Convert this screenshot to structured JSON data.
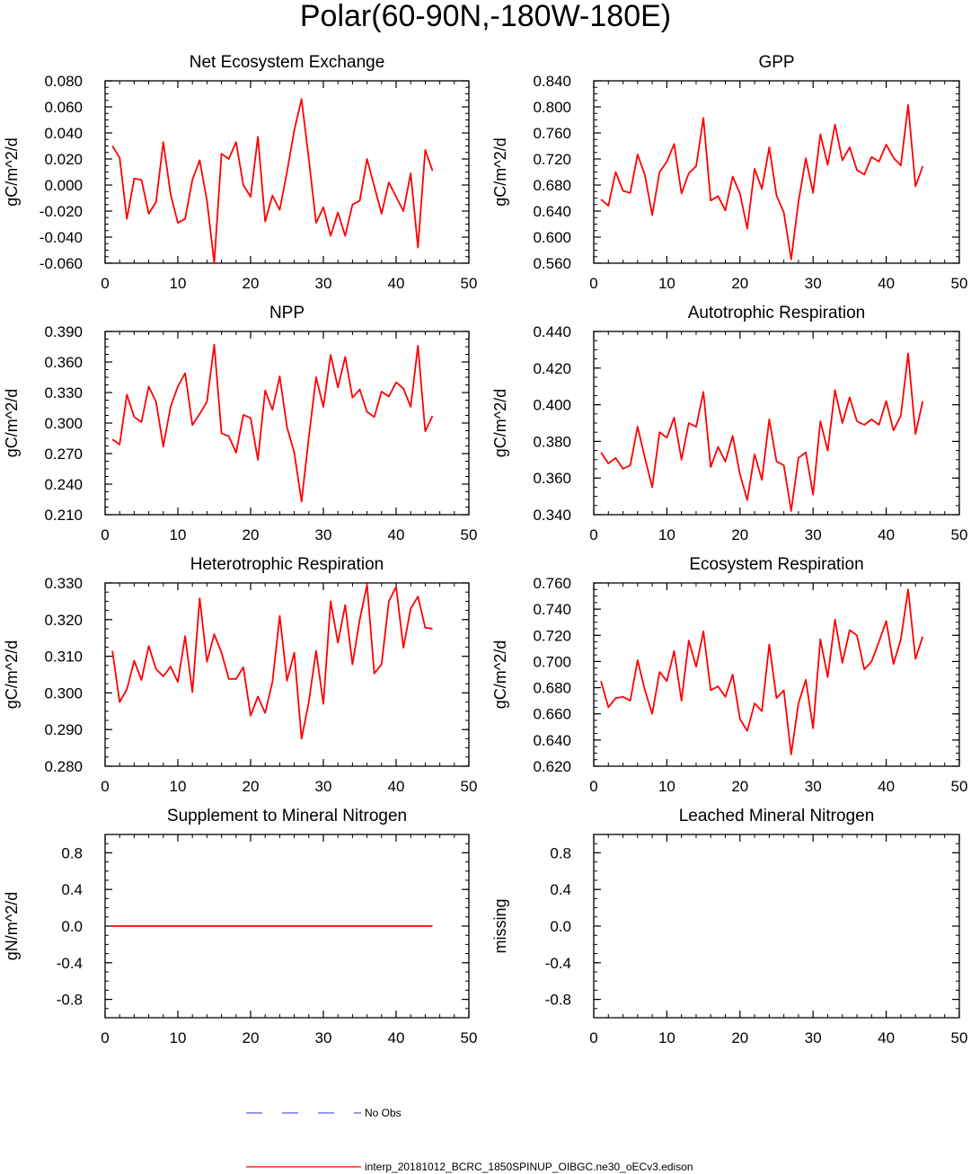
{
  "page": {
    "title": "Polar(60-90N,-180W-180E)"
  },
  "legend": {
    "obs_label": "No Obs",
    "model_label": "interp_20181012_BCRC_1850SPINUP_OIBGC.ne30_oECv3.edison",
    "obs_color": "#5b5bf0",
    "model_color": "#ff0000"
  },
  "chart_data": [
    {
      "type": "line",
      "title": "Net Ecosystem Exchange",
      "ylabel": "gC/m^2/d",
      "xlim": [
        0,
        50
      ],
      "ylim": [
        -0.06,
        0.08
      ],
      "xticks": [
        0,
        10,
        20,
        30,
        40,
        50
      ],
      "yticks": [
        "-0.060",
        "-0.040",
        "-0.020",
        "0.000",
        "0.020",
        "0.040",
        "0.060",
        "0.080"
      ],
      "ytick_values": [
        -0.06,
        -0.04,
        -0.02,
        0.0,
        0.02,
        0.04,
        0.06,
        0.08
      ],
      "series": [
        {
          "color": "#ff0000",
          "x": [
            1,
            2,
            3,
            4,
            5,
            6,
            7,
            8,
            9,
            10,
            11,
            12,
            13,
            14,
            15,
            16,
            17,
            18,
            19,
            20,
            21,
            22,
            23,
            24,
            25,
            26,
            27,
            28,
            29,
            30,
            31,
            32,
            33,
            34,
            35,
            36,
            37,
            38,
            39,
            40,
            41,
            42,
            43,
            44,
            45
          ],
          "values": [
            0.03,
            0.021,
            -0.026,
            0.005,
            0.004,
            -0.022,
            -0.013,
            0.033,
            -0.007,
            -0.029,
            -0.026,
            0.004,
            0.019,
            -0.012,
            -0.06,
            0.024,
            0.02,
            0.033,
            0.0,
            -0.009,
            0.037,
            -0.028,
            -0.008,
            -0.019,
            0.01,
            0.042,
            0.066,
            0.02,
            -0.029,
            -0.017,
            -0.039,
            -0.021,
            -0.039,
            -0.015,
            -0.012,
            0.02,
            -0.001,
            -0.022,
            0.002,
            -0.009,
            -0.02,
            0.009,
            -0.048,
            0.027,
            0.011
          ]
        }
      ]
    },
    {
      "type": "line",
      "title": "GPP",
      "ylabel": "gC/m^2/d",
      "xlim": [
        0,
        50
      ],
      "ylim": [
        0.56,
        0.84
      ],
      "xticks": [
        0,
        10,
        20,
        30,
        40,
        50
      ],
      "yticks": [
        "0.560",
        "0.600",
        "0.640",
        "0.680",
        "0.720",
        "0.760",
        "0.800",
        "0.840"
      ],
      "ytick_values": [
        0.56,
        0.6,
        0.64,
        0.68,
        0.72,
        0.76,
        0.8,
        0.84
      ],
      "series": [
        {
          "color": "#ff0000",
          "x": [
            1,
            2,
            3,
            4,
            5,
            6,
            7,
            8,
            9,
            10,
            11,
            12,
            13,
            14,
            15,
            16,
            17,
            18,
            19,
            20,
            21,
            22,
            23,
            24,
            25,
            26,
            27,
            28,
            29,
            30,
            31,
            32,
            33,
            34,
            35,
            36,
            37,
            38,
            39,
            40,
            41,
            42,
            43,
            44,
            45
          ],
          "values": [
            0.658,
            0.648,
            0.7,
            0.671,
            0.668,
            0.727,
            0.695,
            0.634,
            0.7,
            0.716,
            0.743,
            0.667,
            0.698,
            0.709,
            0.783,
            0.656,
            0.663,
            0.641,
            0.693,
            0.667,
            0.613,
            0.705,
            0.674,
            0.738,
            0.664,
            0.638,
            0.566,
            0.654,
            0.721,
            0.668,
            0.758,
            0.711,
            0.773,
            0.718,
            0.738,
            0.703,
            0.696,
            0.723,
            0.716,
            0.742,
            0.722,
            0.71,
            0.803,
            0.678,
            0.709
          ]
        }
      ]
    },
    {
      "type": "line",
      "title": "NPP",
      "ylabel": "gC/m^2/d",
      "xlim": [
        0,
        50
      ],
      "ylim": [
        0.21,
        0.39
      ],
      "xticks": [
        0,
        10,
        20,
        30,
        40,
        50
      ],
      "yticks": [
        "0.210",
        "0.240",
        "0.270",
        "0.300",
        "0.330",
        "0.360",
        "0.390"
      ],
      "ytick_values": [
        0.21,
        0.24,
        0.27,
        0.3,
        0.33,
        0.36,
        0.39
      ],
      "series": [
        {
          "color": "#ff0000",
          "x": [
            1,
            2,
            3,
            4,
            5,
            6,
            7,
            8,
            9,
            10,
            11,
            12,
            13,
            14,
            15,
            16,
            17,
            18,
            19,
            20,
            21,
            22,
            23,
            24,
            25,
            26,
            27,
            28,
            29,
            30,
            31,
            32,
            33,
            34,
            35,
            36,
            37,
            38,
            39,
            40,
            41,
            42,
            43,
            44,
            45
          ],
          "values": [
            0.284,
            0.279,
            0.328,
            0.306,
            0.301,
            0.336,
            0.321,
            0.277,
            0.316,
            0.336,
            0.349,
            0.298,
            0.309,
            0.321,
            0.377,
            0.29,
            0.287,
            0.271,
            0.308,
            0.305,
            0.264,
            0.332,
            0.313,
            0.346,
            0.296,
            0.271,
            0.223,
            0.286,
            0.345,
            0.316,
            0.367,
            0.335,
            0.365,
            0.325,
            0.333,
            0.311,
            0.306,
            0.331,
            0.326,
            0.34,
            0.334,
            0.316,
            0.376,
            0.292,
            0.307
          ]
        }
      ]
    },
    {
      "type": "line",
      "title": "Autotrophic Respiration",
      "ylabel": "gC/m^2/d",
      "xlim": [
        0,
        50
      ],
      "ylim": [
        0.34,
        0.44
      ],
      "xticks": [
        0,
        10,
        20,
        30,
        40,
        50
      ],
      "yticks": [
        "0.340",
        "0.360",
        "0.380",
        "0.400",
        "0.420",
        "0.440"
      ],
      "ytick_values": [
        0.34,
        0.36,
        0.38,
        0.4,
        0.42,
        0.44
      ],
      "series": [
        {
          "color": "#ff0000",
          "x": [
            1,
            2,
            3,
            4,
            5,
            6,
            7,
            8,
            9,
            10,
            11,
            12,
            13,
            14,
            15,
            16,
            17,
            18,
            19,
            20,
            21,
            22,
            23,
            24,
            25,
            26,
            27,
            28,
            29,
            30,
            31,
            32,
            33,
            34,
            35,
            36,
            37,
            38,
            39,
            40,
            41,
            42,
            43,
            44,
            45
          ],
          "values": [
            0.374,
            0.368,
            0.371,
            0.365,
            0.367,
            0.388,
            0.371,
            0.355,
            0.385,
            0.382,
            0.393,
            0.37,
            0.39,
            0.388,
            0.407,
            0.366,
            0.377,
            0.369,
            0.383,
            0.362,
            0.348,
            0.373,
            0.359,
            0.392,
            0.369,
            0.367,
            0.342,
            0.371,
            0.374,
            0.351,
            0.391,
            0.375,
            0.408,
            0.39,
            0.404,
            0.391,
            0.389,
            0.392,
            0.389,
            0.402,
            0.386,
            0.394,
            0.428,
            0.384,
            0.402
          ]
        }
      ]
    },
    {
      "type": "line",
      "title": "Heterotrophic Respiration",
      "ylabel": "gC/m^2/d",
      "xlim": [
        0,
        50
      ],
      "ylim": [
        0.28,
        0.33
      ],
      "xticks": [
        0,
        10,
        20,
        30,
        40,
        50
      ],
      "yticks": [
        "0.280",
        "0.290",
        "0.300",
        "0.310",
        "0.320",
        "0.330"
      ],
      "ytick_values": [
        0.28,
        0.29,
        0.3,
        0.31,
        0.32,
        0.33
      ],
      "series": [
        {
          "color": "#ff0000",
          "x": [
            1,
            2,
            3,
            4,
            5,
            6,
            7,
            8,
            9,
            10,
            11,
            12,
            13,
            14,
            15,
            16,
            17,
            18,
            19,
            20,
            21,
            22,
            23,
            24,
            25,
            26,
            27,
            28,
            29,
            30,
            31,
            32,
            33,
            34,
            35,
            36,
            37,
            38,
            39,
            40,
            41,
            42,
            43,
            44,
            45
          ],
          "values": [
            0.3115,
            0.2975,
            0.301,
            0.3088,
            0.3035,
            0.3128,
            0.3065,
            0.3045,
            0.3072,
            0.303,
            0.3155,
            0.3002,
            0.3258,
            0.3085,
            0.316,
            0.311,
            0.3038,
            0.3038,
            0.307,
            0.2938,
            0.299,
            0.2945,
            0.303,
            0.321,
            0.3033,
            0.311,
            0.2875,
            0.2975,
            0.3115,
            0.297,
            0.325,
            0.3137,
            0.324,
            0.3078,
            0.32,
            0.3295,
            0.3053,
            0.3078,
            0.325,
            0.329,
            0.3123,
            0.323,
            0.3263,
            0.3178,
            0.3175
          ]
        }
      ]
    },
    {
      "type": "line",
      "title": "Ecosystem Respiration",
      "ylabel": "gC/m^2/d",
      "xlim": [
        0,
        50
      ],
      "ylim": [
        0.62,
        0.76
      ],
      "xticks": [
        0,
        10,
        20,
        30,
        40,
        50
      ],
      "yticks": [
        "0.620",
        "0.640",
        "0.660",
        "0.680",
        "0.700",
        "0.720",
        "0.740",
        "0.760"
      ],
      "ytick_values": [
        0.62,
        0.64,
        0.66,
        0.68,
        0.7,
        0.72,
        0.74,
        0.76
      ],
      "series": [
        {
          "color": "#ff0000",
          "x": [
            1,
            2,
            3,
            4,
            5,
            6,
            7,
            8,
            9,
            10,
            11,
            12,
            13,
            14,
            15,
            16,
            17,
            18,
            19,
            20,
            21,
            22,
            23,
            24,
            25,
            26,
            27,
            28,
            29,
            30,
            31,
            32,
            33,
            34,
            35,
            36,
            37,
            38,
            39,
            40,
            41,
            42,
            43,
            44,
            45
          ],
          "values": [
            0.685,
            0.665,
            0.672,
            0.673,
            0.67,
            0.701,
            0.678,
            0.66,
            0.692,
            0.685,
            0.708,
            0.67,
            0.716,
            0.696,
            0.723,
            0.678,
            0.681,
            0.673,
            0.69,
            0.656,
            0.647,
            0.668,
            0.662,
            0.713,
            0.672,
            0.678,
            0.629,
            0.668,
            0.686,
            0.649,
            0.717,
            0.688,
            0.732,
            0.699,
            0.724,
            0.72,
            0.694,
            0.7,
            0.715,
            0.731,
            0.698,
            0.717,
            0.755,
            0.702,
            0.719
          ]
        }
      ]
    },
    {
      "type": "line",
      "title": "Supplement to Mineral Nitrogen",
      "ylabel": "gN/m^2/d",
      "xlim": [
        0,
        50
      ],
      "ylim": [
        -1.0,
        1.0
      ],
      "xticks": [
        0,
        10,
        20,
        30,
        40,
        50
      ],
      "yticks": [
        "-0.8",
        "-0.4",
        "0.0",
        "0.4",
        "0.8"
      ],
      "ytick_values": [
        -0.8,
        -0.4,
        0.0,
        0.4,
        0.8
      ],
      "series": [
        {
          "color": "#ff0000",
          "x": [
            1,
            45
          ],
          "values": [
            0.0,
            0.0
          ]
        }
      ]
    },
    {
      "type": "line",
      "title": "Leached Mineral Nitrogen",
      "ylabel": "missing",
      "xlim": [
        0,
        50
      ],
      "ylim": [
        -1.0,
        1.0
      ],
      "xticks": [
        0,
        10,
        20,
        30,
        40,
        50
      ],
      "yticks": [
        "-0.8",
        "-0.4",
        "0.0",
        "0.4",
        "0.8"
      ],
      "ytick_values": [
        -0.8,
        -0.4,
        0.0,
        0.4,
        0.8
      ],
      "series": []
    }
  ]
}
